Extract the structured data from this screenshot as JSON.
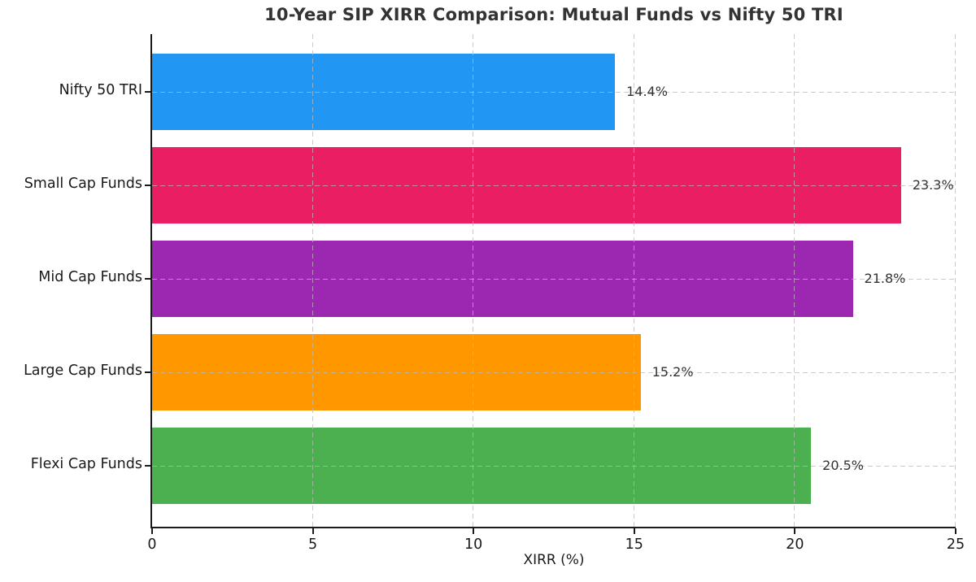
{
  "chart_data": {
    "type": "bar",
    "orientation": "horizontal",
    "title": "10-Year SIP XIRR Comparison: Mutual Funds vs Nifty 50 TRI",
    "xlabel": "XIRR (%)",
    "ylabel": "",
    "categories": [
      "Nifty 50 TRI",
      "Small Cap Funds",
      "Mid Cap Funds",
      "Large Cap Funds",
      "Flexi Cap Funds"
    ],
    "values": [
      14.4,
      23.3,
      21.8,
      15.2,
      20.5
    ],
    "value_labels": [
      "14.4%",
      "23.3%",
      "21.8%",
      "15.2%",
      "20.5%"
    ],
    "bar_colors": [
      "#2196F3",
      "#E91E63",
      "#9C27B0",
      "#FF9800",
      "#4CAF50"
    ],
    "xlim": [
      0,
      25
    ],
    "x_ticks": [
      0,
      5,
      10,
      15,
      20,
      25
    ],
    "x_tick_labels": [
      "0",
      "5",
      "10",
      "15",
      "20",
      "25"
    ],
    "grid": true,
    "grid_style": "dashed",
    "legend": "none"
  }
}
